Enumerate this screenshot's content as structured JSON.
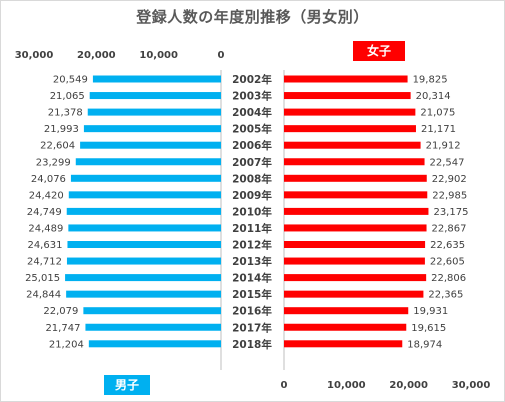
{
  "chart_data": {
    "type": "bar",
    "title": "登録人数の年度別推移（男女別）",
    "categories": [
      "2002年",
      "2003年",
      "2004年",
      "2005年",
      "2006年",
      "2007年",
      "2008年",
      "2009年",
      "2010年",
      "2011年",
      "2012年",
      "2013年",
      "2014年",
      "2015年",
      "2016年",
      "2017年",
      "2018年"
    ],
    "series": [
      {
        "name": "男子",
        "color": "#00b0f0",
        "values": [
          20549,
          21065,
          21378,
          21993,
          22604,
          23299,
          24076,
          24420,
          24749,
          24489,
          24631,
          24712,
          25015,
          24844,
          22079,
          21747,
          21204
        ],
        "labels": [
          "20,549",
          "21,065",
          "21,378",
          "21,993",
          "22,604",
          "23,299",
          "24,076",
          "24,420",
          "24,749",
          "24,489",
          "24,631",
          "24,712",
          "25,015",
          "24,844",
          "22,079",
          "21,747",
          "21,204"
        ]
      },
      {
        "name": "女子",
        "color": "#ff0000",
        "values": [
          19825,
          20314,
          21075,
          21171,
          21912,
          22547,
          22902,
          22985,
          23175,
          22867,
          22635,
          22605,
          22806,
          22365,
          19931,
          19615,
          18974
        ],
        "labels": [
          "19,825",
          "20,314",
          "21,075",
          "21,171",
          "21,912",
          "22,547",
          "22,902",
          "22,985",
          "23,175",
          "22,867",
          "22,635",
          "22,605",
          "22,806",
          "22,365",
          "19,931",
          "19,615",
          "18,974"
        ]
      }
    ],
    "male_axis": {
      "range": [
        0,
        30000
      ],
      "reversed": true,
      "ticks": [
        30000,
        20000,
        10000,
        0
      ],
      "tick_labels": [
        "30,000",
        "20,000",
        "10,000",
        "0"
      ],
      "position": "top"
    },
    "female_axis": {
      "range": [
        0,
        30000
      ],
      "ticks": [
        0,
        10000,
        20000,
        30000
      ],
      "tick_labels": [
        "0",
        "10,000",
        "20,000",
        "30,000"
      ],
      "position": "bottom"
    },
    "grid": false,
    "legend": "badges"
  }
}
